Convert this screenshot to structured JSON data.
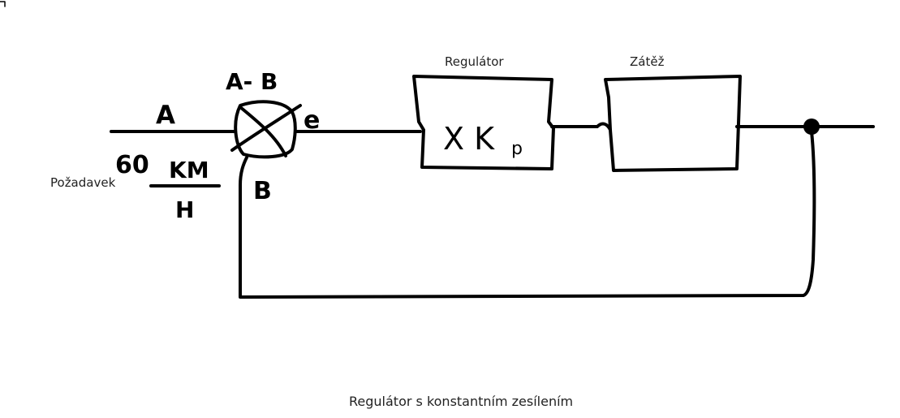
{
  "diagram": {
    "caption": "Regulátor s konstantním zesílením",
    "blocks": {
      "regulator": {
        "title": "Regulátor",
        "content_main": "X K",
        "content_sub": "p"
      },
      "load": {
        "title": "Zátěž"
      }
    },
    "signals": {
      "input": "A",
      "difference": "A- B",
      "error": "e",
      "feedback": "B"
    },
    "setpoint": {
      "label": "Požadavek",
      "value": "60",
      "unit_numerator": "KM",
      "unit_denominator": "H"
    }
  }
}
